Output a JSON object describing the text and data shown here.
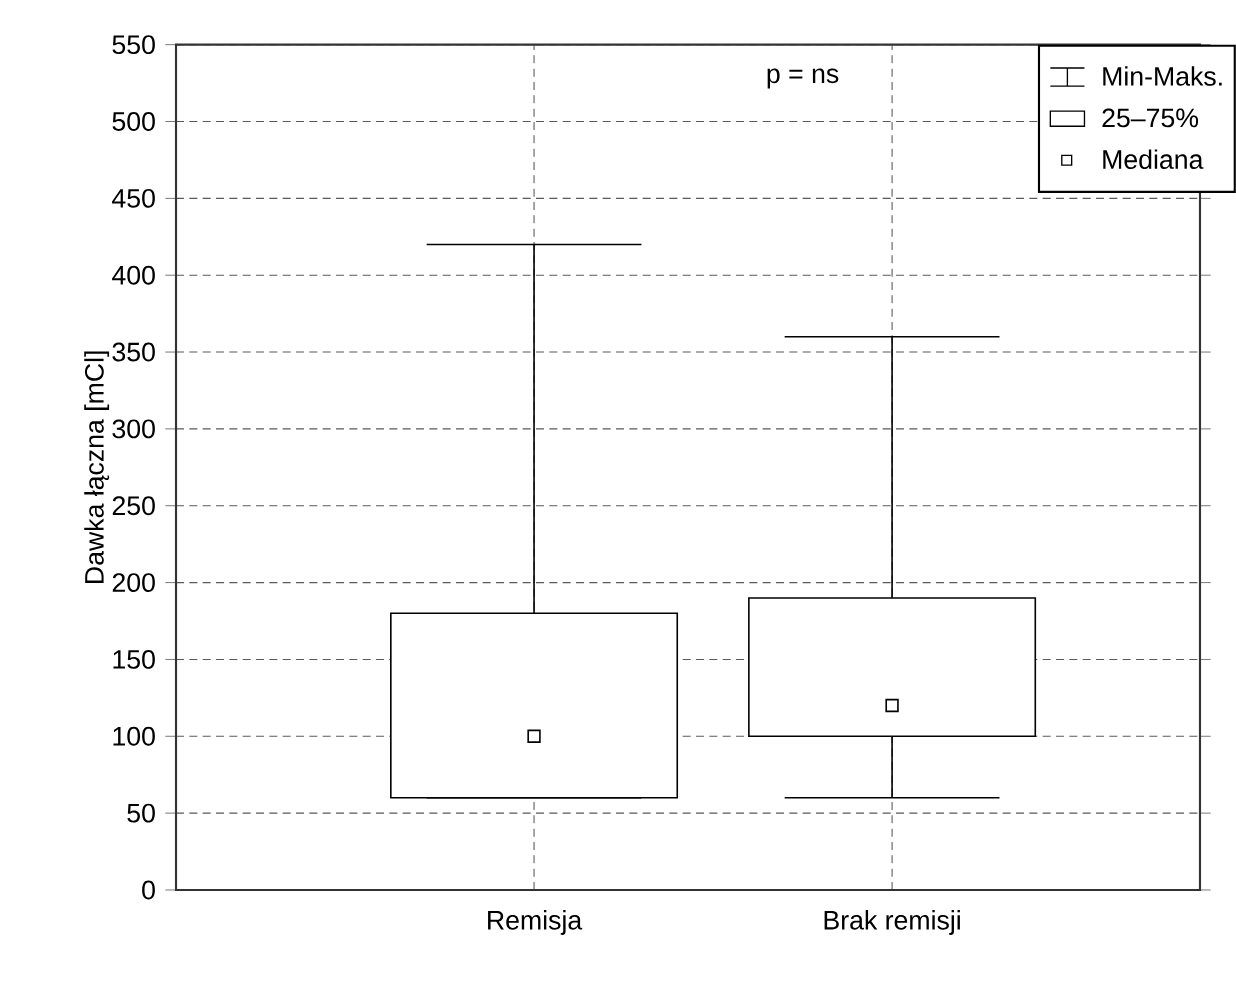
{
  "chart_data": {
    "type": "box",
    "ylabel": "Dawka łączna [mCl]",
    "categories": [
      "Remisja",
      "Brak remisji"
    ],
    "boxes": [
      {
        "low": 60,
        "q1": 60,
        "median": 100,
        "q3": 180,
        "high": 420
      },
      {
        "low": 60,
        "q1": 100,
        "median": 120,
        "q3": 190,
        "high": 360
      }
    ],
    "ylim": [
      0,
      550
    ],
    "yticks": [
      0,
      50,
      100,
      150,
      200,
      250,
      300,
      350,
      400,
      450,
      500,
      550
    ],
    "grid": true,
    "marker": "square",
    "annotations": [
      "p = ns",
      "Min-Maks.",
      "25–75%",
      "Mediana"
    ]
  }
}
